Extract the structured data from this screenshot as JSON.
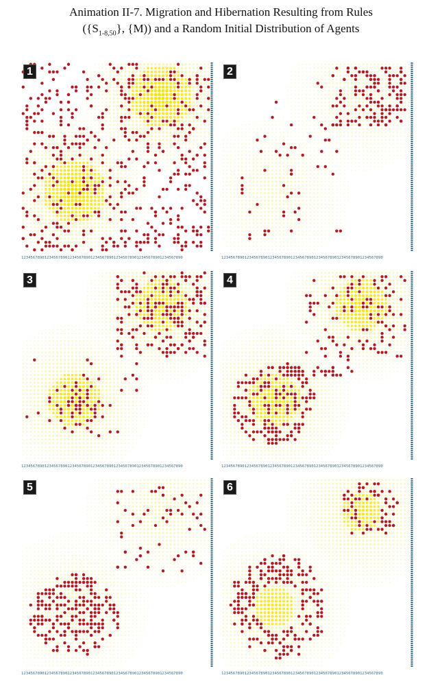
{
  "title_line1": "Animation II-7. Migration and Hibernation Resulting from Rules",
  "title_line2_pre": "({S",
  "title_line2_sub": "1-8,50",
  "title_line2_post": "}, {M)) and a Random Initial Distribution of Agents",
  "axis_ticks": "1234567890123456789012345678901234567890123456789012345678901234567890",
  "colors": {
    "background": "#ffffff",
    "sugar_low": "#f5f0a0",
    "sugar_high": "#f2e300",
    "agent": "#b01c22",
    "axis": "#3b6d8a",
    "badge": "#1a1a1a"
  },
  "panels": [
    {
      "label": "1",
      "sugar_peaks": [
        [
          0.28,
          0.68
        ],
        [
          0.74,
          0.18
        ]
      ],
      "sugar_strength": 1.0,
      "agents": "dense"
    },
    {
      "label": "2",
      "sugar_peaks": [
        [
          0.28,
          0.68
        ],
        [
          0.74,
          0.18
        ]
      ],
      "sugar_strength": 0.5,
      "agents": "upper-right"
    },
    {
      "label": "3",
      "sugar_peaks": [
        [
          0.28,
          0.68
        ],
        [
          0.74,
          0.18
        ]
      ],
      "sugar_strength": 0.9,
      "agents": "upper-right-and-center"
    },
    {
      "label": "4",
      "sugar_peaks": [
        [
          0.28,
          0.68
        ],
        [
          0.74,
          0.18
        ]
      ],
      "sugar_strength": 0.9,
      "agents": "diagonal-to-lower-left"
    },
    {
      "label": "5",
      "sugar_peaks": [
        [
          0.28,
          0.68
        ],
        [
          0.74,
          0.18
        ]
      ],
      "sugar_strength": 0.6,
      "agents": "lower-left"
    },
    {
      "label": "6",
      "sugar_peaks": [
        [
          0.28,
          0.68
        ],
        [
          0.74,
          0.18
        ]
      ],
      "sugar_strength": 0.8,
      "agents": "two-rings"
    }
  ]
}
